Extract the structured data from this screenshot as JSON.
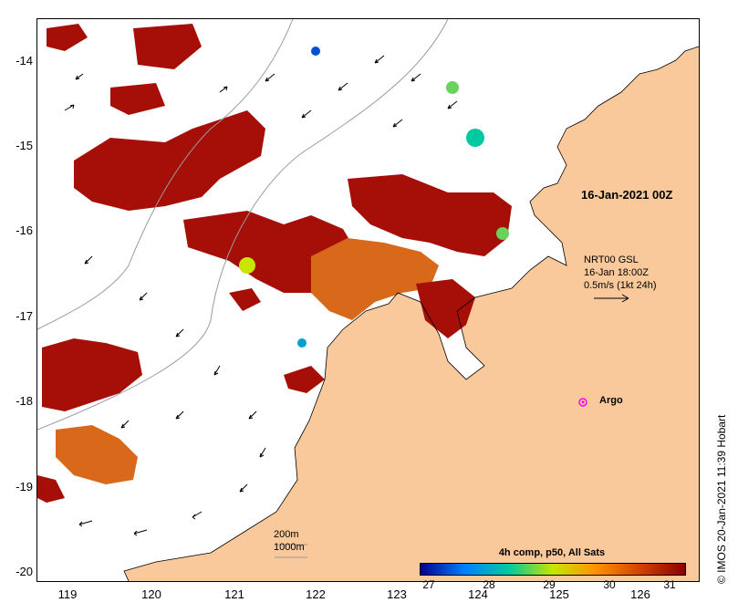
{
  "map": {
    "lat_ticks": [
      "-14",
      "-15",
      "-16",
      "-17",
      "-18",
      "-19",
      "-20"
    ],
    "lon_ticks": [
      "119",
      "120",
      "121",
      "122",
      "123",
      "124",
      "125",
      "126"
    ],
    "datetime_label": "16-Jan-2021 00Z",
    "current_legend": {
      "line1": "NRT00 GSL",
      "line2": "16-Jan 18:00Z",
      "line3": "0.5m/s (1kt 24h)"
    },
    "argo_label": "Argo",
    "bathymetry_labels": [
      "200m",
      "1000m"
    ],
    "credit": "© IMOS 20-Jan-2021 11:39 Hobart",
    "colors": {
      "land": "#f9c99b",
      "hot_sst": "#a50f08",
      "mid_sst": "#d8681a",
      "argo": "#ff00ff"
    }
  },
  "colorbar": {
    "title": "4h comp, p50, All Sats",
    "ticks": [
      "27",
      "28",
      "29",
      "30",
      "31"
    ],
    "colors": [
      "#00008b",
      "#0080ff",
      "#00c8a0",
      "#c8e600",
      "#ff9000",
      "#d04000",
      "#8b0000"
    ]
  }
}
